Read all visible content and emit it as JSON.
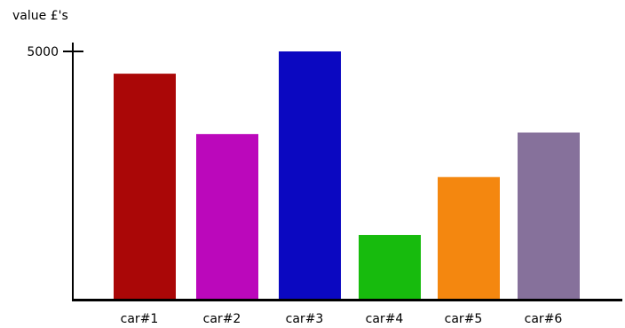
{
  "chart_data": {
    "type": "bar",
    "title": "",
    "ylabel": "value £'s",
    "xlabel": "",
    "ylim": [
      0,
      5000
    ],
    "yticks": [
      5000
    ],
    "ytick_labels": [
      "5000"
    ],
    "grid": false,
    "legend": "none",
    "categories": [
      "car#1",
      "car#2",
      "car#3",
      "car#4",
      "car#5",
      "car#6"
    ],
    "values": [
      4550,
      3330,
      5000,
      1290,
      2460,
      3360
    ],
    "colors": [
      "#aa0707",
      "#bb08bb",
      "#0b08c1",
      "#17bb0d",
      "#f4870f",
      "#86719b"
    ]
  }
}
